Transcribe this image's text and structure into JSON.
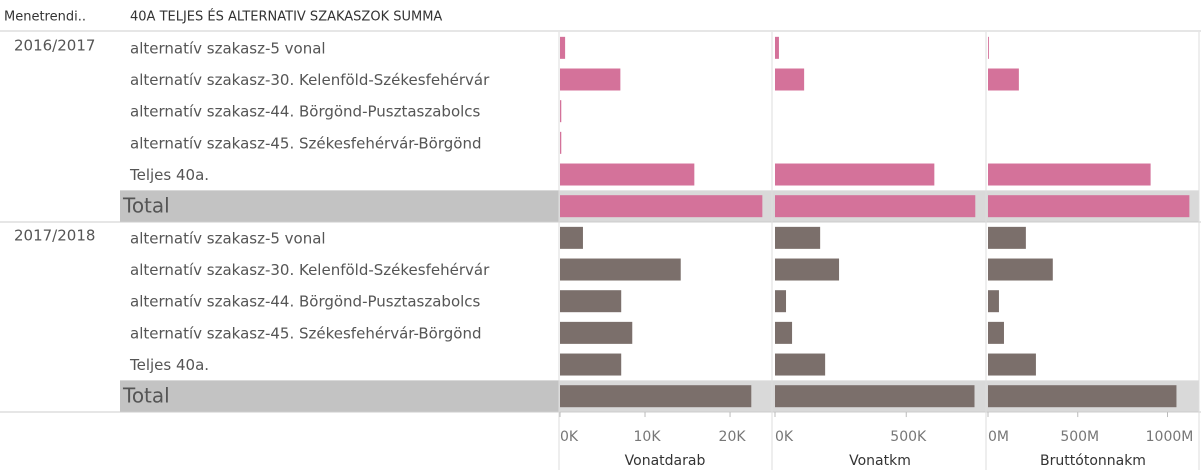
{
  "chart_data": {
    "type": "bar",
    "orientation": "horizontal",
    "header": [
      "Menetrendi..",
      "40A TELJES ÉS ALTERNATIV SZAKASZOK SUMMA"
    ],
    "groups": [
      {
        "name": "2016/2017",
        "color": "#d4729a",
        "categories": [
          "alternatív szakasz-5 vonal",
          "alternatív szakasz-30. Kelenföld-Székesfehérvár",
          "alternatív szakasz-44. Börgönd-Pusztaszabolcs",
          "alternatív szakasz-45. Székesfehérvár-Börgönd",
          "Teljes 40a.",
          "Total"
        ]
      },
      {
        "name": "2017/2018",
        "color": "#7b6f6b",
        "categories": [
          "alternatív szakasz-5 vonal",
          "alternatív szakasz-30. Kelenföld-Székesfehérvár",
          "alternatív szakasz-44. Börgönd-Pusztaszabolcs",
          "alternatív szakasz-45. Székesfehérvár-Börgönd",
          "Teljes 40a.",
          "Total"
        ]
      }
    ],
    "panels": [
      {
        "name": "Vonatdarab",
        "xlim": [
          0,
          24700
        ],
        "xticks": [
          {
            "value": 0,
            "label": "0K"
          },
          {
            "value": 10000,
            "label": "10K"
          },
          {
            "value": 20000,
            "label": "20K"
          }
        ],
        "values": [
          [
            600,
            7100,
            150,
            150,
            15800,
            23800
          ],
          [
            2700,
            14200,
            7200,
            8500,
            7200,
            22500
          ]
        ]
      },
      {
        "name": "Vonatkm",
        "xlim": [
          0,
          800000
        ],
        "xticks": [
          {
            "value": 0,
            "label": "0K"
          },
          {
            "value": 500000,
            "label": "500K"
          }
        ],
        "values": [
          [
            15000,
            111000,
            0,
            0,
            607000,
            763000
          ],
          [
            172000,
            244000,
            42000,
            65000,
            191000,
            760000
          ]
        ]
      },
      {
        "name": "Bruttótonnakm",
        "xlim": [
          0,
          1170000000
        ],
        "xticks": [
          {
            "value": 0,
            "label": "0M"
          },
          {
            "value": 500000000,
            "label": "500M"
          },
          {
            "value": 1000000000,
            "label": "1000M"
          }
        ],
        "values": [
          [
            5000000,
            172000000,
            0,
            0,
            906000000,
            1122000000
          ],
          [
            211000000,
            361000000,
            61000000,
            89000000,
            267000000,
            1050000000
          ]
        ]
      }
    ]
  }
}
